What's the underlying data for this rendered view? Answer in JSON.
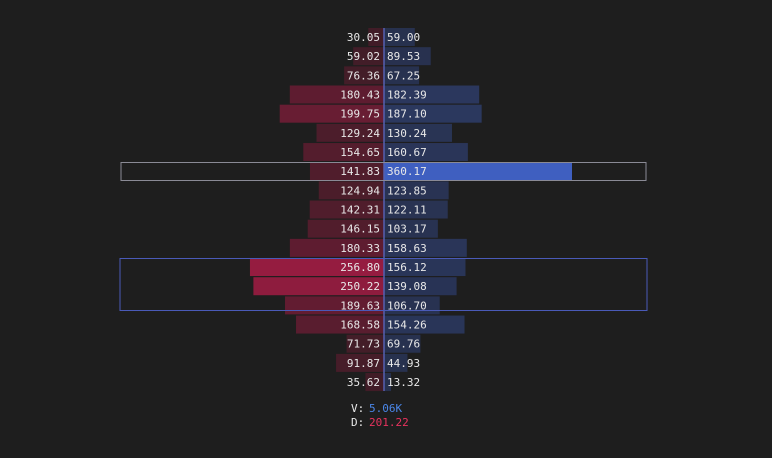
{
  "chart_data": {
    "type": "butterfly",
    "series": [
      {
        "color": "#951c40",
        "values": [
          30.05,
          59.02,
          76.36,
          180.43,
          199.75,
          129.24,
          154.65,
          141.83,
          124.94,
          142.31,
          146.15,
          180.33,
          256.8,
          250.22,
          189.63,
          168.58,
          71.73,
          91.87,
          35.62
        ],
        "value_labels": [
          "30.05",
          "59.02",
          "76.36",
          "180.43",
          "199.75",
          "129.24",
          "154.65",
          "141.83",
          "124.94",
          "142.31",
          "146.15",
          "180.33",
          "256.80",
          "250.22",
          "189.63",
          "168.58",
          "71.73",
          "91.87",
          "35.62"
        ]
      },
      {
        "color": "#3f5fc0",
        "values": [
          59.0,
          89.53,
          67.25,
          182.39,
          187.1,
          130.24,
          160.67,
          360.17,
          123.85,
          122.11,
          103.17,
          158.63,
          156.12,
          139.08,
          106.7,
          154.26,
          69.76,
          44.93,
          13.32
        ],
        "value_labels": [
          "59.00",
          "89.53",
          "67.25",
          "182.39",
          "187.10",
          "130.24",
          "160.67",
          "360.17",
          "123.85",
          "122.11",
          "103.17",
          "158.63",
          "156.12",
          "139.08",
          "106.70",
          "154.26",
          "69.76",
          "44.93",
          "13.32"
        ]
      }
    ],
    "footer": {
      "v_label": "V:",
      "v_value": "5.06K",
      "d_label": "D:",
      "d_value": "201.22"
    }
  }
}
